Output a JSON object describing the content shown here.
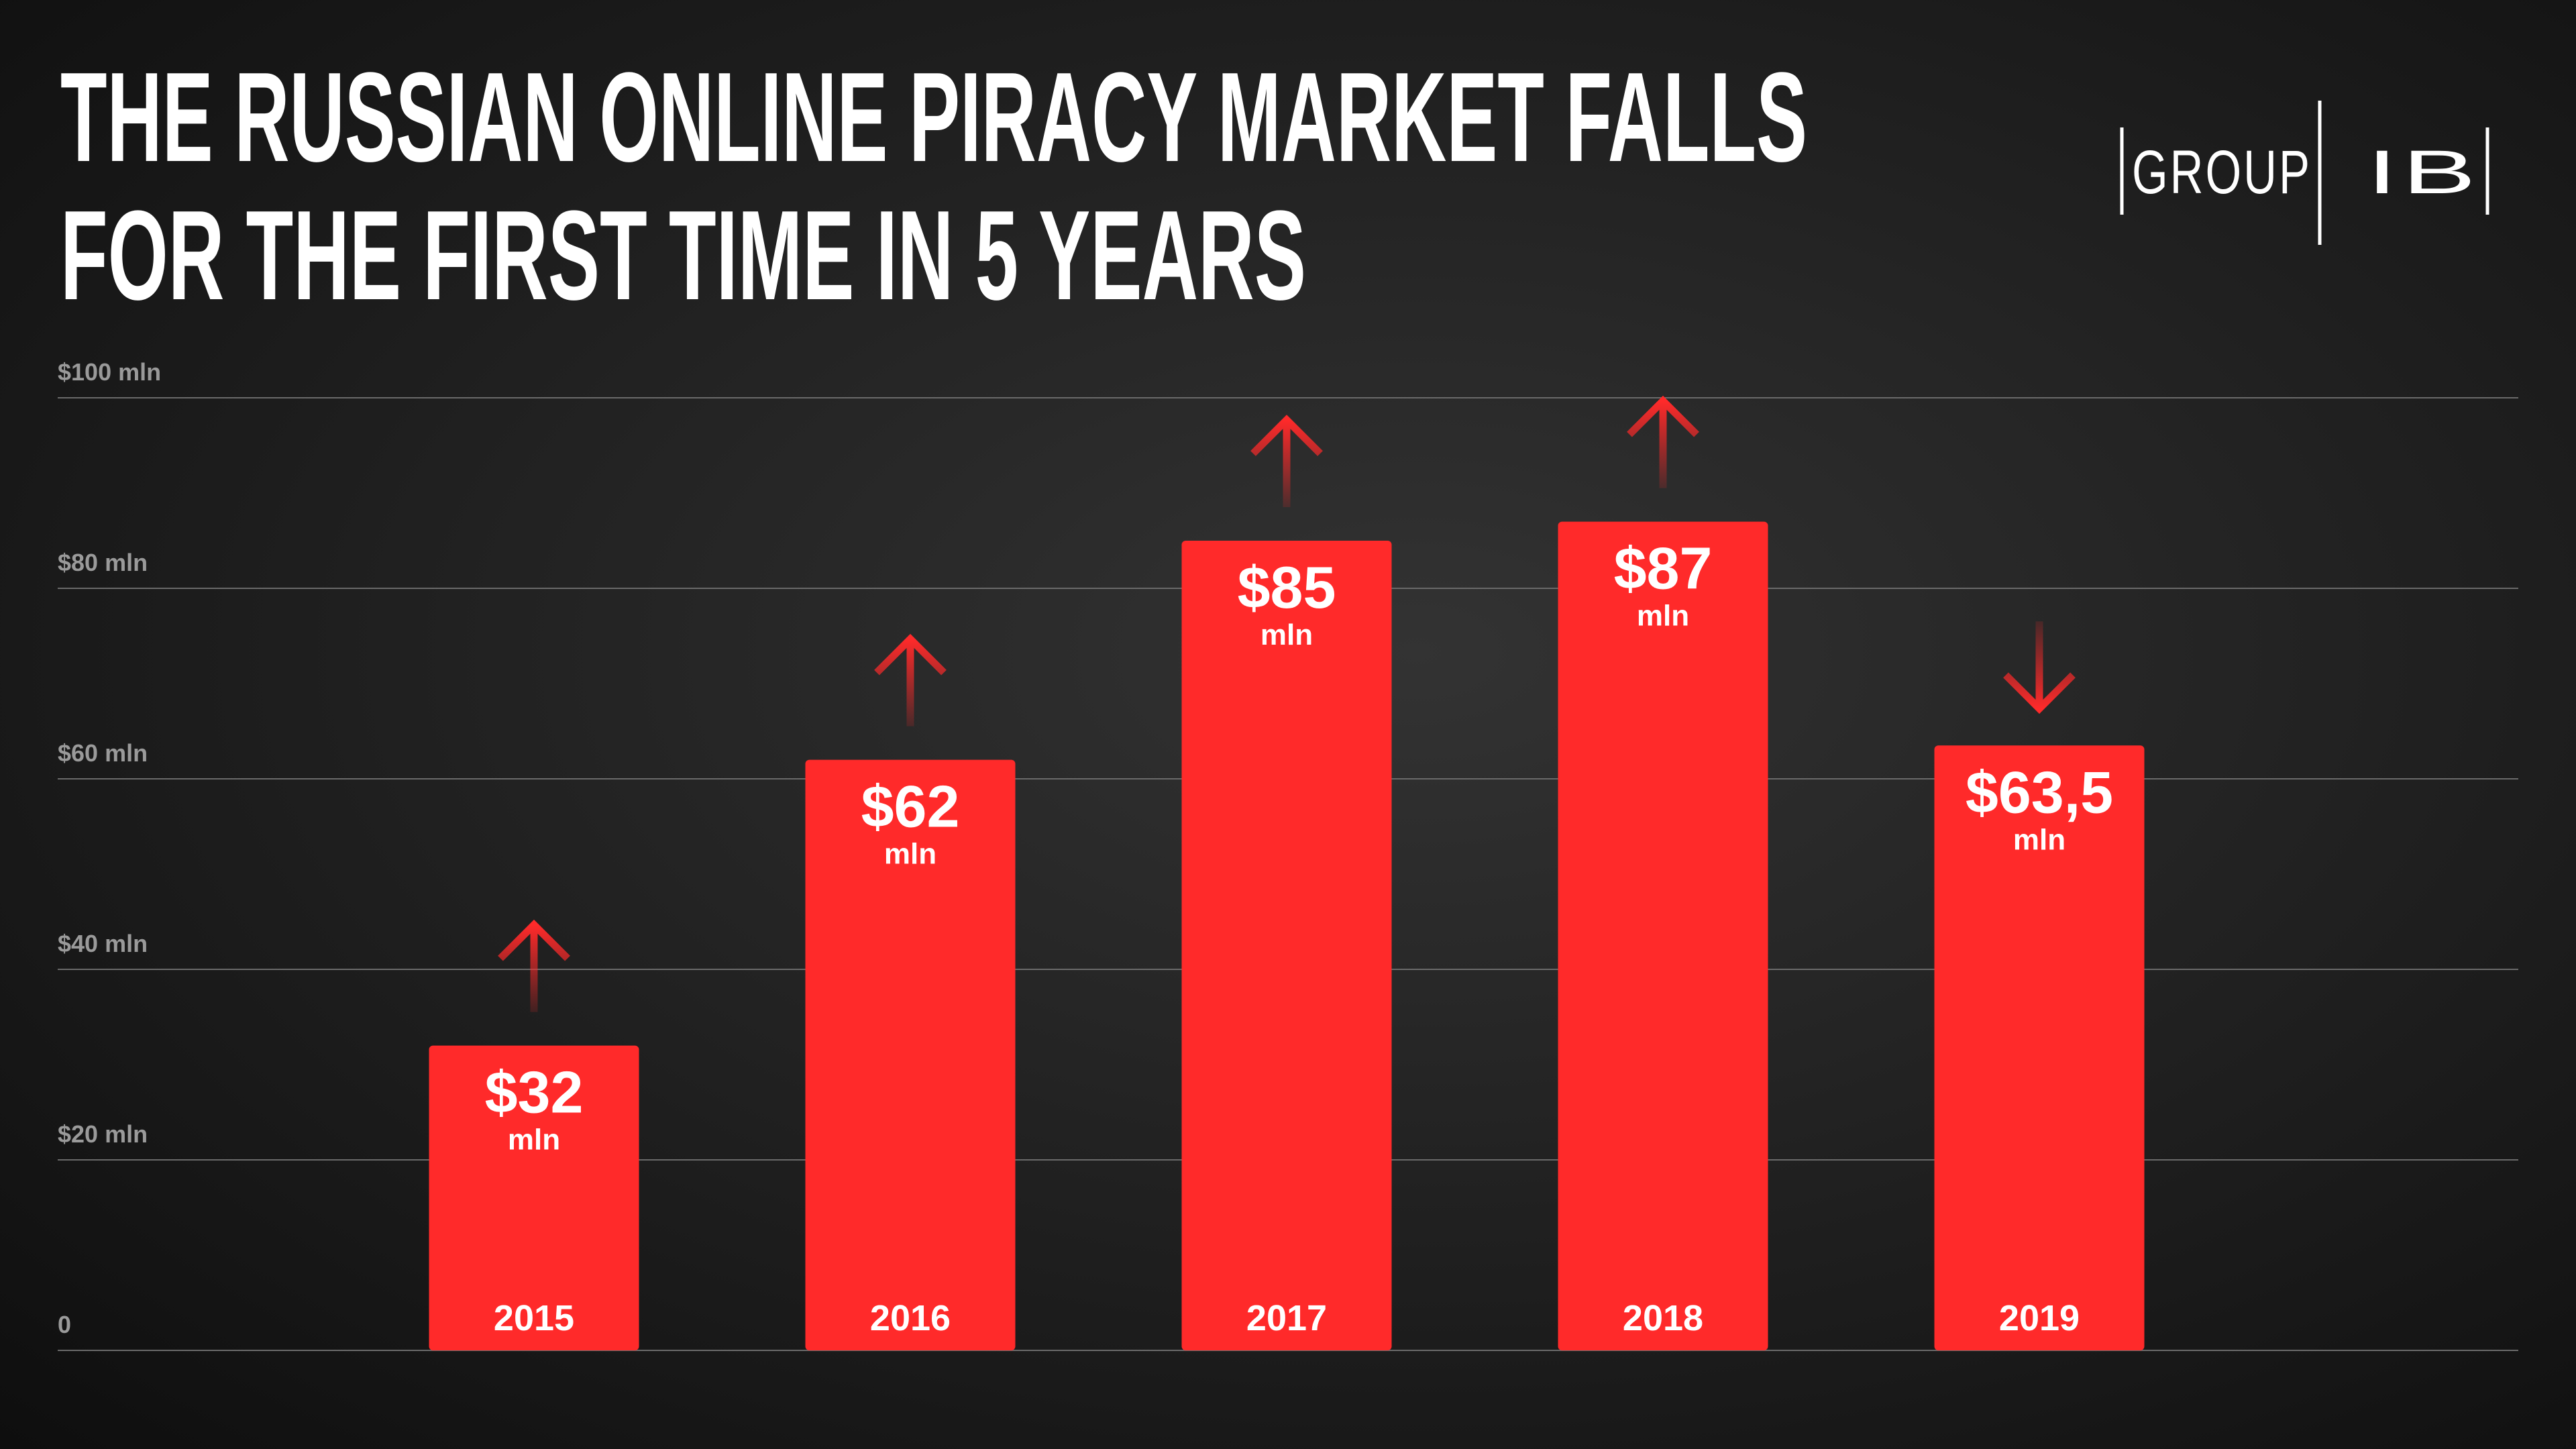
{
  "chart_data": {
    "type": "bar",
    "title": [
      "THE RUSSIAN ONLINE PIRACY MARKET FALLS",
      "FOR THE FIRST TIME IN 5 YEARS"
    ],
    "logo": [
      "GROUP",
      "IB"
    ],
    "categories": [
      "2015",
      "2016",
      "2017",
      "2018",
      "2019"
    ],
    "values": [
      32,
      62,
      85,
      87,
      63.5
    ],
    "value_labels": [
      "$32",
      "$62",
      "$85",
      "$87",
      "$63,5"
    ],
    "value_unit": "mln",
    "arrows": [
      "up",
      "up",
      "up",
      "up",
      "down"
    ],
    "color": "#ff2a2a",
    "ylim": [
      0,
      100
    ],
    "yticks": [
      0,
      {
        "value": 20,
        "label": "$20 mln"
      },
      {
        "value": 40,
        "label": "$40 mln"
      },
      {
        "value": 60,
        "label": "$60 mln"
      },
      {
        "value": 80,
        "label": "$80 mln"
      },
      {
        "value": 100,
        "label": "$100 mln"
      }
    ],
    "grid": true
  }
}
